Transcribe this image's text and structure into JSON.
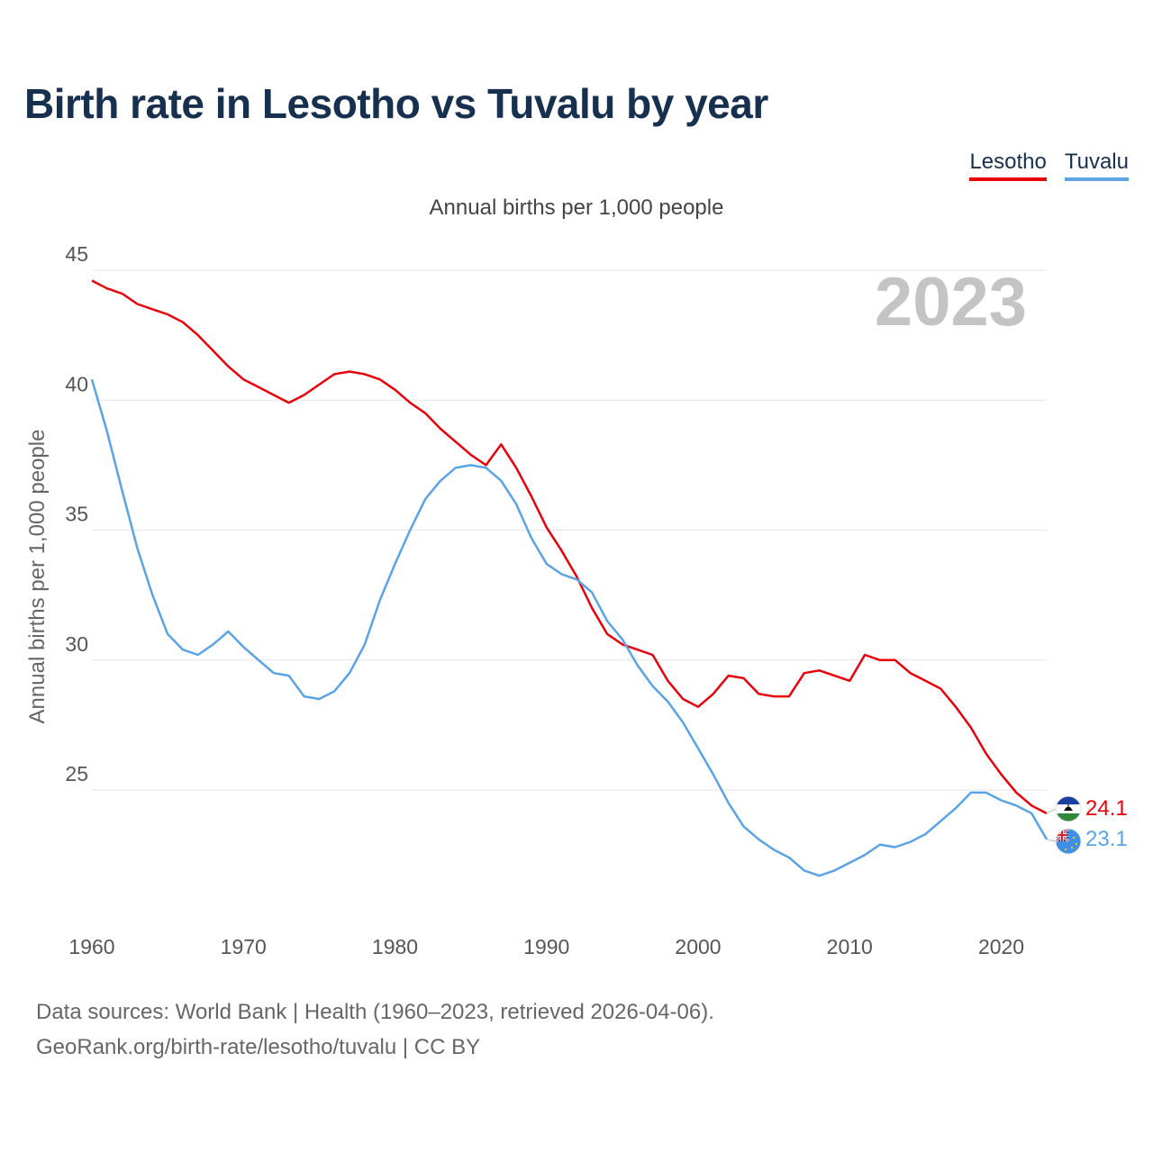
{
  "title": "Birth rate in Lesotho vs Tuvalu by year",
  "legend": [
    {
      "label": "Lesotho",
      "color": "#e8000b"
    },
    {
      "label": "Tuvalu",
      "color": "#5aa3e6"
    }
  ],
  "footer": {
    "line1": "Data sources: World Bank | Health (1960–2023, retrieved 2026-04-06).",
    "line2": "GeoRank.org/birth-rate/lesotho/tuvalu | CC BY"
  },
  "chart_data": {
    "type": "line",
    "title": "Annual births per 1,000 people",
    "ylabel": "Annual births per 1,000 people",
    "xlabel": "",
    "year_display": "2023",
    "xlim": [
      1960,
      2023
    ],
    "ylim": [
      20,
      45
    ],
    "x_ticks": [
      1960,
      1970,
      1980,
      1990,
      2000,
      2010,
      2020
    ],
    "y_ticks": [
      25,
      30,
      35,
      40,
      45
    ],
    "grid": true,
    "x": [
      1960,
      1961,
      1962,
      1963,
      1964,
      1965,
      1966,
      1967,
      1968,
      1969,
      1970,
      1971,
      1972,
      1973,
      1974,
      1975,
      1976,
      1977,
      1978,
      1979,
      1980,
      1981,
      1982,
      1983,
      1984,
      1985,
      1986,
      1987,
      1988,
      1989,
      1990,
      1991,
      1992,
      1993,
      1994,
      1995,
      1996,
      1997,
      1998,
      1999,
      2000,
      2001,
      2002,
      2003,
      2004,
      2005,
      2006,
      2007,
      2008,
      2009,
      2010,
      2011,
      2012,
      2013,
      2014,
      2015,
      2016,
      2017,
      2018,
      2019,
      2020,
      2021,
      2022,
      2023
    ],
    "series": [
      {
        "name": "Lesotho",
        "color": "#e8000b",
        "end_label": "24.1",
        "values": [
          44.6,
          44.3,
          44.1,
          43.7,
          43.5,
          43.3,
          43.0,
          42.5,
          41.9,
          41.3,
          40.8,
          40.5,
          40.2,
          39.9,
          40.2,
          40.6,
          41.0,
          41.1,
          41.0,
          40.8,
          40.4,
          39.9,
          39.5,
          38.9,
          38.4,
          37.9,
          37.5,
          38.3,
          37.4,
          36.3,
          35.1,
          34.2,
          33.2,
          32.0,
          31.0,
          30.6,
          30.4,
          30.2,
          29.2,
          28.5,
          28.2,
          28.7,
          29.4,
          29.3,
          28.7,
          28.6,
          28.6,
          29.5,
          29.6,
          29.4,
          29.2,
          30.2,
          30.0,
          30.0,
          29.5,
          29.2,
          28.9,
          28.2,
          27.4,
          26.4,
          25.6,
          24.9,
          24.4,
          24.1
        ]
      },
      {
        "name": "Tuvalu",
        "color": "#5aa3e6",
        "end_label": "23.1",
        "values": [
          40.8,
          38.8,
          36.5,
          34.3,
          32.5,
          31.0,
          30.4,
          30.2,
          30.6,
          31.1,
          30.5,
          30.0,
          29.5,
          29.4,
          28.6,
          28.5,
          28.8,
          29.5,
          30.6,
          32.3,
          33.7,
          35.0,
          36.2,
          36.9,
          37.4,
          37.5,
          37.4,
          36.9,
          36.0,
          34.7,
          33.7,
          33.3,
          33.1,
          32.6,
          31.5,
          30.8,
          29.8,
          29.0,
          28.4,
          27.6,
          26.6,
          25.6,
          24.5,
          23.6,
          23.1,
          22.7,
          22.4,
          21.9,
          21.7,
          21.9,
          22.2,
          22.5,
          22.9,
          22.8,
          23.0,
          23.3,
          23.8,
          24.3,
          24.9,
          24.9,
          24.6,
          24.4,
          24.1,
          23.1
        ]
      }
    ]
  }
}
